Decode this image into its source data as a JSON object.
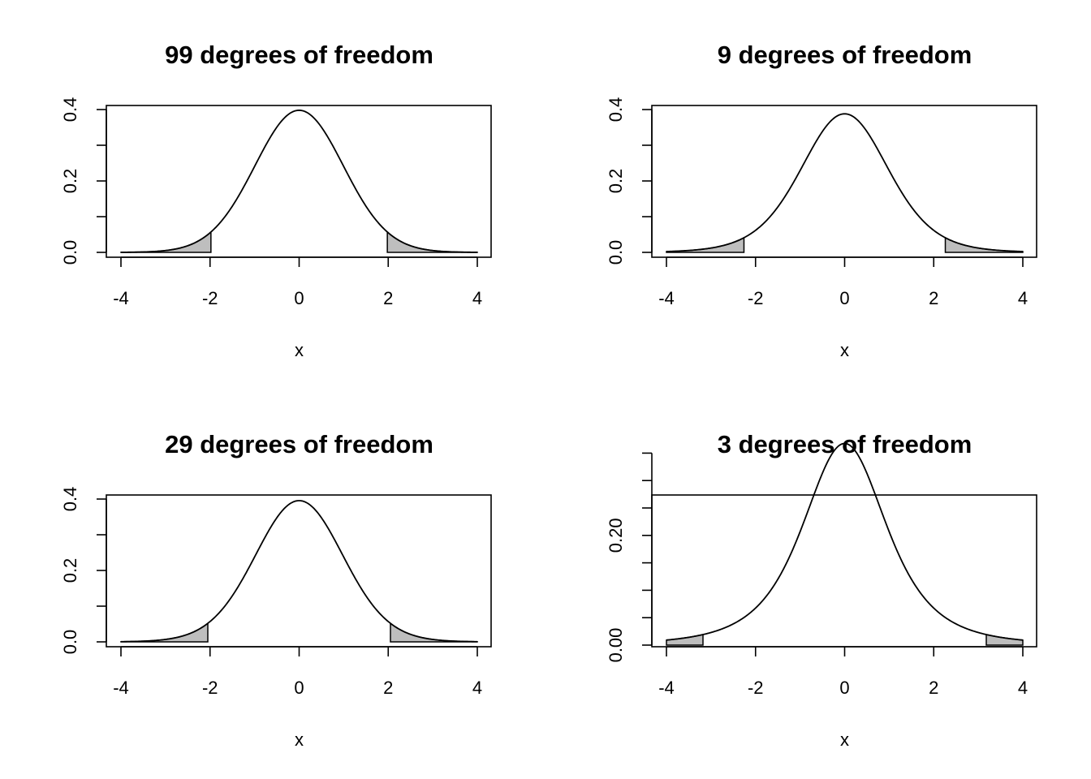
{
  "chart_data": [
    {
      "type": "line",
      "title": "99 degrees of freedom",
      "df": 99,
      "xlabel": "x",
      "ylabel": "",
      "xlim": [
        -4,
        4
      ],
      "ylim": [
        0,
        0.4
      ],
      "xticks": [
        -4,
        -2,
        0,
        2,
        4
      ],
      "xtick_labels": [
        "-4",
        "-2",
        "0",
        "2",
        "4"
      ],
      "yticks": [
        0,
        0.1,
        0.2,
        0.3,
        0.4
      ],
      "ytick_labels": [
        "0.0",
        "",
        "0.2",
        "",
        "0.4"
      ],
      "shaded_tails": {
        "lower": [
          -4,
          -1.98
        ],
        "upper": [
          1.98,
          4
        ]
      },
      "x": [
        -4,
        -3,
        -2.5,
        -2,
        -1.5,
        -1,
        -0.5,
        0,
        0.5,
        1,
        1.5,
        2,
        2.5,
        3,
        4
      ],
      "y": [
        0.0002,
        0.0048,
        0.0178,
        0.0547,
        0.1289,
        0.2406,
        0.3507,
        0.3979,
        0.3507,
        0.2406,
        0.1289,
        0.0547,
        0.0178,
        0.0048,
        0.0002
      ],
      "grid": false,
      "legend": false
    },
    {
      "type": "line",
      "title": "9 degrees of freedom",
      "df": 9,
      "xlabel": "x",
      "ylabel": "",
      "xlim": [
        -4,
        4
      ],
      "ylim": [
        0,
        0.4
      ],
      "xticks": [
        -4,
        -2,
        0,
        2,
        4
      ],
      "xtick_labels": [
        "-4",
        "-2",
        "0",
        "2",
        "4"
      ],
      "yticks": [
        0,
        0.1,
        0.2,
        0.3,
        0.4
      ],
      "ytick_labels": [
        "0.0",
        "",
        "0.2",
        "",
        "0.4"
      ],
      "shaded_tails": {
        "lower": [
          -4,
          -2.26
        ],
        "upper": [
          2.26,
          4
        ]
      },
      "x": [
        -4,
        -3,
        -2.5,
        -2,
        -1.5,
        -1,
        -0.5,
        0,
        0.5,
        1,
        1.5,
        2,
        2.5,
        3,
        4
      ],
      "y": [
        0.0028,
        0.0114,
        0.0278,
        0.0624,
        0.126,
        0.2304,
        0.3397,
        0.388,
        0.3397,
        0.2304,
        0.126,
        0.0624,
        0.0278,
        0.0114,
        0.0028
      ],
      "grid": false,
      "legend": false
    },
    {
      "type": "line",
      "title": "29 degrees of freedom",
      "df": 29,
      "xlabel": "x",
      "ylabel": "",
      "xlim": [
        -4,
        4
      ],
      "ylim": [
        0,
        0.4
      ],
      "xticks": [
        -4,
        -2,
        0,
        2,
        4
      ],
      "xtick_labels": [
        "-4",
        "-2",
        "0",
        "2",
        "4"
      ],
      "yticks": [
        0,
        0.1,
        0.2,
        0.3,
        0.4
      ],
      "ytick_labels": [
        "0.0",
        "",
        "0.2",
        "",
        "0.4"
      ],
      "shaded_tails": {
        "lower": [
          -4,
          -2.05
        ],
        "upper": [
          2.05,
          4
        ]
      },
      "x": [
        -4,
        -3,
        -2.5,
        -2,
        -1.5,
        -1,
        -0.5,
        0,
        0.5,
        1,
        1.5,
        2,
        2.5,
        3,
        4
      ],
      "y": [
        0.0006,
        0.0067,
        0.0204,
        0.0567,
        0.1279,
        0.2371,
        0.3469,
        0.3945,
        0.3469,
        0.2371,
        0.1279,
        0.0567,
        0.0204,
        0.0067,
        0.0006
      ],
      "grid": false,
      "legend": false
    },
    {
      "type": "line",
      "title": "3 degrees of freedom",
      "df": 3,
      "xlabel": "x",
      "ylabel": "",
      "xlim": [
        -4,
        4
      ],
      "ylim": [
        0,
        0.37
      ],
      "xticks": [
        -4,
        -2,
        0,
        2,
        4
      ],
      "xtick_labels": [
        "-4",
        "-2",
        "0",
        "2",
        "4"
      ],
      "yticks": [
        0,
        0.05,
        0.1,
        0.15,
        0.2,
        0.25,
        0.3,
        0.35
      ],
      "ytick_labels": [
        "0.00",
        "",
        "",
        "",
        "0.20",
        "",
        "",
        ""
      ],
      "shaded_tails": {
        "lower": [
          -4,
          -3.18
        ],
        "upper": [
          3.18,
          4
        ]
      },
      "x": [
        -4,
        -3,
        -2.5,
        -2,
        -1.5,
        -1,
        -0.5,
        0,
        0.5,
        1,
        1.5,
        2,
        2.5,
        3,
        4
      ],
      "y": [
        0.0092,
        0.023,
        0.0382,
        0.0675,
        0.1274,
        0.2067,
        0.2994,
        0.3676,
        0.2994,
        0.2067,
        0.1274,
        0.0675,
        0.0382,
        0.023,
        0.0092
      ],
      "grid": false,
      "legend": false
    }
  ]
}
